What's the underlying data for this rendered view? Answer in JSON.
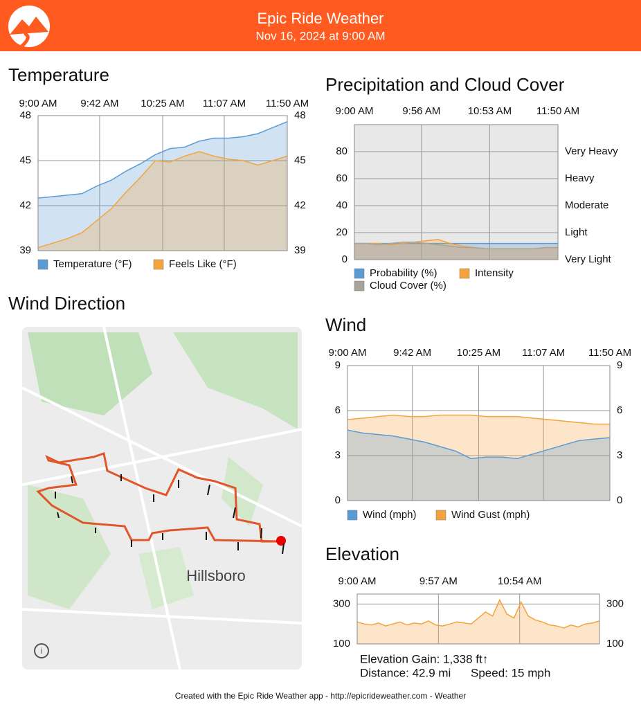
{
  "header": {
    "title": "Epic Ride Weather",
    "subtitle": "Nov 16, 2024 at 9:00 AM"
  },
  "chart_data": [
    {
      "type": "area",
      "title": "Temperature",
      "x": [
        0,
        10,
        20,
        30,
        40,
        50,
        60,
        70,
        80,
        90,
        100,
        110,
        120,
        130,
        140,
        150,
        160,
        170
      ],
      "xlim": [
        0,
        170
      ],
      "xticks": [
        {
          "value": 0,
          "label": "9:00 AM"
        },
        {
          "value": 42,
          "label": "9:42 AM"
        },
        {
          "value": 85,
          "label": "10:25 AM"
        },
        {
          "value": 127,
          "label": "11:07 AM"
        },
        {
          "value": 170,
          "label": "11:50 AM"
        }
      ],
      "ylim": [
        39,
        48
      ],
      "yticks": [
        39,
        42,
        45,
        48
      ],
      "grid": true,
      "series": [
        {
          "name": "Temperature (°F)",
          "color": "#5b9bd5",
          "values": [
            42.5,
            42.6,
            42.7,
            42.8,
            43.3,
            43.7,
            44.3,
            44.8,
            45.4,
            45.8,
            45.9,
            46.3,
            46.5,
            46.5,
            46.6,
            46.8,
            47.2,
            47.6
          ]
        },
        {
          "name": "Feels Like (°F)",
          "color": "#f5a33c",
          "values": [
            39.2,
            39.5,
            39.8,
            40.2,
            41.0,
            41.8,
            42.9,
            43.9,
            45.0,
            44.9,
            45.3,
            45.6,
            45.3,
            45.1,
            45.0,
            44.7,
            45.0,
            45.3
          ]
        }
      ]
    },
    {
      "type": "area",
      "title": "Precipitation and Cloud Cover",
      "x": [
        0,
        10,
        20,
        30,
        40,
        50,
        60,
        70,
        80,
        90,
        100,
        110,
        120,
        130,
        140,
        150,
        160,
        170
      ],
      "xlim": [
        0,
        170
      ],
      "xticks": [
        {
          "value": 0,
          "label": "9:00 AM"
        },
        {
          "value": 56,
          "label": "9:56 AM"
        },
        {
          "value": 113,
          "label": "10:53 AM"
        },
        {
          "value": 170,
          "label": "11:50 AM"
        }
      ],
      "ylim": [
        0,
        100
      ],
      "yticks": [
        0,
        20,
        40,
        60,
        80
      ],
      "grid": true,
      "y2ticks": [
        {
          "value": 0,
          "label": "Very Light"
        },
        {
          "value": 20,
          "label": "Light"
        },
        {
          "value": 40,
          "label": "Moderate"
        },
        {
          "value": 60,
          "label": "Heavy"
        },
        {
          "value": 80,
          "label": "Very Heavy"
        }
      ],
      "series": [
        {
          "name": "Probability (%)",
          "color": "#5b9bd5",
          "values": [
            12,
            12,
            12,
            12,
            12,
            12,
            12,
            12,
            12,
            12,
            12,
            12,
            12,
            12,
            12,
            12,
            12,
            12
          ]
        },
        {
          "name": "Intensity",
          "color": "#f5a33c",
          "values": [
            12,
            12,
            12,
            11,
            12,
            13,
            14,
            15,
            12,
            10,
            9,
            8,
            8,
            8,
            8,
            8,
            9,
            9
          ]
        },
        {
          "name": "Cloud Cover (%)",
          "color": "#a8a39b",
          "values": [
            12,
            12,
            11,
            12,
            13,
            13,
            12,
            11,
            10,
            9,
            9,
            8,
            8,
            8,
            8,
            8,
            9,
            9
          ]
        }
      ]
    },
    {
      "type": "area",
      "title": "Wind",
      "x": [
        0,
        10,
        20,
        30,
        40,
        50,
        60,
        70,
        80,
        90,
        100,
        110,
        120,
        130,
        140,
        150,
        160,
        170
      ],
      "xlim": [
        0,
        170
      ],
      "xticks": [
        {
          "value": 0,
          "label": "9:00 AM"
        },
        {
          "value": 42,
          "label": "9:42 AM"
        },
        {
          "value": 85,
          "label": "10:25 AM"
        },
        {
          "value": 127,
          "label": "11:07 AM"
        },
        {
          "value": 170,
          "label": "11:50 AM"
        }
      ],
      "ylim": [
        0,
        9
      ],
      "yticks": [
        0,
        3,
        6,
        9
      ],
      "grid": true,
      "series": [
        {
          "name": "Wind Gust (mph)",
          "color": "#f5a33c",
          "values": [
            5.4,
            5.5,
            5.6,
            5.7,
            5.6,
            5.6,
            5.7,
            5.7,
            5.7,
            5.6,
            5.6,
            5.6,
            5.5,
            5.4,
            5.3,
            5.2,
            5.1,
            5.1
          ]
        },
        {
          "name": "Wind (mph)",
          "color": "#5b9bd5",
          "values": [
            4.7,
            4.5,
            4.4,
            4.3,
            4.1,
            3.9,
            3.6,
            3.3,
            2.8,
            2.9,
            2.9,
            2.8,
            3.1,
            3.4,
            3.7,
            4.0,
            4.1,
            4.2
          ]
        }
      ]
    },
    {
      "type": "area",
      "title": "Elevation",
      "x": [
        0,
        5,
        10,
        15,
        20,
        25,
        30,
        35,
        40,
        45,
        50,
        55,
        60,
        65,
        70,
        75,
        80,
        85,
        90,
        95,
        100,
        105,
        110,
        115,
        120,
        125,
        130,
        135,
        140,
        145,
        150,
        155,
        160,
        165,
        170
      ],
      "xlim": [
        0,
        170
      ],
      "xticks": [
        {
          "value": 0,
          "label": "9:00 AM"
        },
        {
          "value": 57,
          "label": "9:57 AM"
        },
        {
          "value": 114,
          "label": "10:54 AM"
        }
      ],
      "ylim": [
        100,
        350
      ],
      "yticks": [
        100,
        300
      ],
      "grid": true,
      "series": [
        {
          "name": "Elevation",
          "color": "#f5a33c",
          "values": [
            210,
            200,
            195,
            205,
            190,
            200,
            210,
            195,
            205,
            200,
            215,
            195,
            190,
            200,
            210,
            205,
            200,
            230,
            260,
            240,
            320,
            250,
            230,
            310,
            240,
            220,
            210,
            195,
            190,
            180,
            195,
            185,
            200,
            205,
            215
          ]
        }
      ]
    }
  ],
  "map": {
    "title": "Wind Direction",
    "label": "Hillsboro"
  },
  "stats": {
    "gain": "Elevation Gain: 1,338 ft↑",
    "distance": "Distance: 42.9 mi",
    "speed": "Speed: 15 mph"
  },
  "footer": "Created with the Epic Ride Weather app - http://epicrideweather.com - Weather"
}
